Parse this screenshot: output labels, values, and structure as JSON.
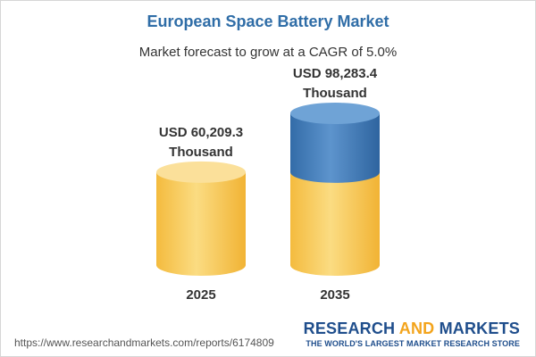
{
  "chart_data": {
    "type": "bar",
    "title": "European Space Battery Market",
    "subtitle": "Market forecast to grow at a CAGR of 5.0%",
    "categories": [
      "2025",
      "2035"
    ],
    "values": [
      60209.3,
      98283.4
    ],
    "value_labels": [
      [
        "USD 60,209.3",
        "Thousand"
      ],
      [
        "USD 98,283.4",
        "Thousand"
      ]
    ],
    "unit": "USD Thousand",
    "colors": {
      "gold": "#f6c64f",
      "blue": "#3f7ab8",
      "gold_top": "#fbe09a",
      "blue_top": "#6fa3d6"
    }
  },
  "footer": {
    "url": "https://www.researchandmarkets.com/reports/6174809",
    "brand_main": "RESEARCH ",
    "brand_accent": "AND",
    "brand_end": " MARKETS",
    "tagline": "THE WORLD'S LARGEST MARKET RESEARCH STORE"
  }
}
